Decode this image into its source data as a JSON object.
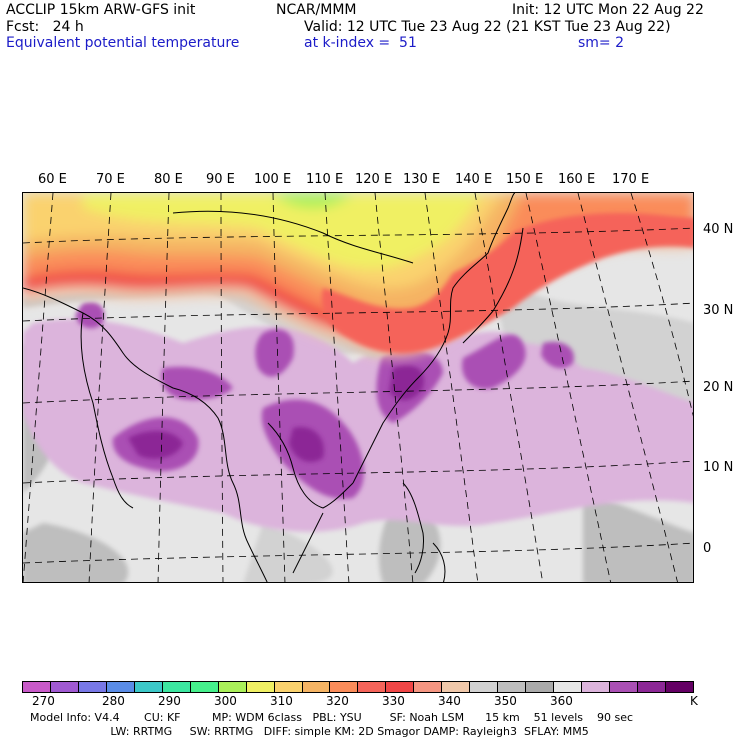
{
  "header": {
    "line1_left": "ACCLIP 15km ARW-GFS init",
    "line1_center": "NCAR/MMM",
    "line1_right": "Init: 12 UTC Mon 22 Aug 22",
    "line2_left": "Fcst:   24 h",
    "line2_right": "Valid: 12 UTC Tue 23 Aug 22 (21 KST Tue 23 Aug 22)",
    "line3_left": "Equivalent potential temperature",
    "line3_center": "at k-index =  51",
    "line3_right": "sm= 2"
  },
  "map": {
    "lon_labels": [
      "60 E",
      "70 E",
      "80 E",
      "90 E",
      "100 E",
      "110 E",
      "120 E",
      "130 E",
      "140 E",
      "150 E",
      "160 E",
      "170 E"
    ],
    "lat_labels": [
      "40 N",
      "30 N",
      "20 N",
      "10 N",
      "0"
    ]
  },
  "colorbar": {
    "colors": [
      "#c85ac8",
      "#a05ad2",
      "#7878e6",
      "#5a8ce6",
      "#3cc8c8",
      "#3ce6a0",
      "#46f08c",
      "#aaf05a",
      "#f0f064",
      "#fad26e",
      "#f5b464",
      "#fa8c5a",
      "#f5645a",
      "#f04646",
      "#f59682",
      "#f0c8aa",
      "#d2d2d2",
      "#bebebe",
      "#aaaaaa",
      "#e6e6e6",
      "#dcb4dc",
      "#aa50b4",
      "#8c2896",
      "#640064"
    ],
    "labels": [
      "270",
      "280",
      "290",
      "300",
      "310",
      "320",
      "330",
      "340",
      "350",
      "360",
      "K"
    ]
  },
  "footer": {
    "line1": "Model Info: V4.4       CU: KF         MP: WDM 6class   PBL: YSU        SF: Noah LSM      15 km    51 levels    90 sec",
    "line2": "                       LW: RRTMG     SW: RRTMG   DIFF: simple KM: 2D Smagor DAMP: Rayleigh3  SFLAY: MM5"
  }
}
